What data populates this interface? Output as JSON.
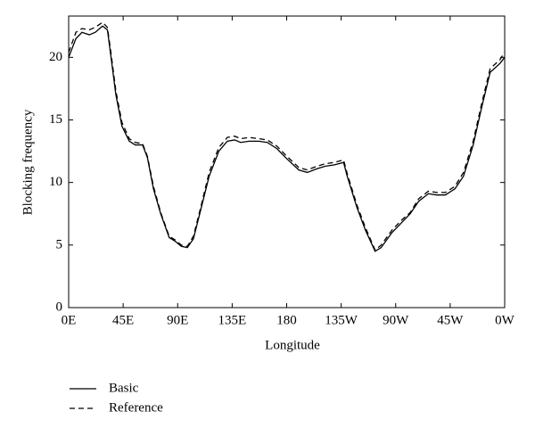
{
  "chart_data": {
    "type": "line",
    "xlabel": "Longitude",
    "ylabel": "Blocking frequency",
    "xlim": [
      0,
      360
    ],
    "ylim": [
      0,
      23.3
    ],
    "xticks": [
      {
        "value": 0,
        "label": "0E"
      },
      {
        "value": 45,
        "label": "45E"
      },
      {
        "value": 90,
        "label": "90E"
      },
      {
        "value": 135,
        "label": "135E"
      },
      180,
      {
        "value": 225,
        "label": "135W"
      },
      {
        "value": 270,
        "label": "90W"
      },
      {
        "value": 315,
        "label": "45W"
      },
      {
        "value": 360,
        "label": "0W"
      }
    ],
    "yticks": [
      0,
      5,
      10,
      15,
      20
    ],
    "legend": "below",
    "series": [
      {
        "name": "Basic",
        "color": "#000000",
        "dash": "solid",
        "x": [
          0,
          6,
          11,
          17,
          22,
          28,
          32,
          35,
          39,
          44,
          50,
          55,
          61,
          65,
          70,
          76,
          83,
          88,
          93,
          98,
          103,
          109,
          116,
          124,
          131,
          137,
          142,
          149,
          157,
          164,
          172,
          179,
          190,
          197,
          205,
          212,
          219,
          227,
          230,
          238,
          245,
          253,
          258,
          267,
          275,
          282,
          289,
          297,
          304,
          311,
          319,
          326,
          334,
          341,
          348,
          356,
          360
        ],
        "values": [
          20,
          21.5,
          22.0,
          21.8,
          22.0,
          22.5,
          22.2,
          20,
          17,
          14.5,
          13.3,
          13.0,
          13.0,
          12,
          9.5,
          7.5,
          5.6,
          5.3,
          4.9,
          4.8,
          5.5,
          7.8,
          10.5,
          12.5,
          13.3,
          13.4,
          13.2,
          13.3,
          13.3,
          13.2,
          12.7,
          12.0,
          11.0,
          10.8,
          11.1,
          11.3,
          11.4,
          11.6,
          10.5,
          8,
          6.2,
          4.5,
          4.8,
          6,
          6.8,
          7.5,
          8.5,
          9.1,
          9.0,
          9.0,
          9.5,
          10.5,
          13,
          16,
          18.8,
          19.5,
          20
        ]
      },
      {
        "name": "Reference",
        "color": "#000000",
        "dash": "dashed",
        "x": [
          0,
          6,
          11,
          17,
          22,
          28,
          32,
          35,
          39,
          44,
          50,
          55,
          61,
          65,
          70,
          76,
          83,
          88,
          93,
          98,
          103,
          109,
          116,
          124,
          131,
          137,
          142,
          149,
          157,
          164,
          172,
          179,
          190,
          197,
          205,
          212,
          219,
          227,
          230,
          238,
          245,
          253,
          258,
          267,
          275,
          282,
          289,
          297,
          304,
          311,
          319,
          326,
          334,
          341,
          348,
          356,
          360
        ],
        "values": [
          20.4,
          22.0,
          22.3,
          22.2,
          22.4,
          22.8,
          22.4,
          20.3,
          17.3,
          14.8,
          13.5,
          13.2,
          13.1,
          12.1,
          9.7,
          7.6,
          5.7,
          5.4,
          5.0,
          4.9,
          5.7,
          8.0,
          10.8,
          12.8,
          13.6,
          13.7,
          13.5,
          13.6,
          13.5,
          13.4,
          12.9,
          12.2,
          11.2,
          11.0,
          11.3,
          11.5,
          11.6,
          11.8,
          10.7,
          8.2,
          6.4,
          4.6,
          5.0,
          6.2,
          7.0,
          7.6,
          8.7,
          9.3,
          9.2,
          9.2,
          9.7,
          10.8,
          13.3,
          16.3,
          19.1,
          19.8,
          20.4
        ]
      }
    ]
  }
}
